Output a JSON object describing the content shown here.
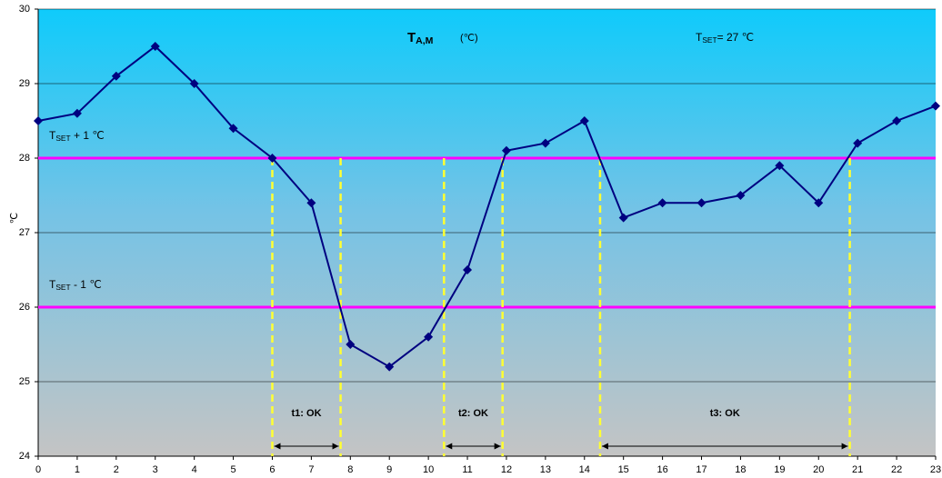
{
  "chart_data": {
    "type": "line",
    "title": {
      "base": "T",
      "sub": "A,M"
    },
    "title_unit": "(℃)",
    "setpoint_note": {
      "base": "T",
      "sub": "SET",
      "rest": "= 27 ℃"
    },
    "y_label": "℃",
    "x": [
      0,
      1,
      2,
      3,
      4,
      5,
      6,
      7,
      8,
      9,
      10,
      11,
      12,
      13,
      14,
      15,
      16,
      17,
      18,
      19,
      20,
      21,
      22,
      23
    ],
    "series": [
      {
        "name": "T_A,M",
        "color": "#000080",
        "values": [
          28.5,
          28.6,
          29.1,
          29.5,
          29.0,
          28.4,
          28.0,
          27.4,
          25.5,
          25.2,
          25.6,
          26.5,
          28.1,
          28.2,
          28.5,
          27.2,
          27.4,
          27.4,
          27.5,
          27.9,
          27.4,
          28.2,
          28.5,
          28.7
        ]
      }
    ],
    "xlim": [
      0,
      23
    ],
    "xticks": [
      0,
      1,
      2,
      3,
      4,
      5,
      6,
      7,
      8,
      9,
      10,
      11,
      12,
      13,
      14,
      15,
      16,
      17,
      18,
      19,
      20,
      21,
      22,
      23
    ],
    "ylim": [
      24,
      30
    ],
    "yticks": [
      24,
      25,
      26,
      27,
      28,
      29,
      30
    ],
    "grid": true,
    "hlines": [
      {
        "value": 28,
        "color": "#ff00ff",
        "label": {
          "base": "T",
          "sub": "SET",
          "rest": " + 1  ℃"
        }
      },
      {
        "value": 26,
        "color": "#ff00ff",
        "label": {
          "base": "T",
          "sub": "SET",
          "rest": " - 1  ℃"
        }
      }
    ],
    "intervals": [
      {
        "label": "t1: OK",
        "start": 6,
        "end": 7.75
      },
      {
        "label": "t2: OK",
        "start": 10.4,
        "end": 11.9
      },
      {
        "label": "t3: OK",
        "start": 14.4,
        "end": 20.8
      }
    ],
    "interval_color": "#ffff33"
  }
}
